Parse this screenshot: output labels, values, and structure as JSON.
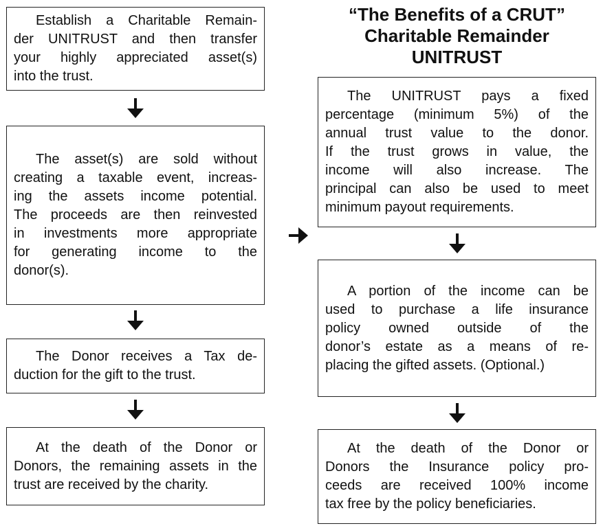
{
  "title": [
    "“The Benefits of a CRUT”",
    "Charitable Remainder",
    "UNITRUST"
  ],
  "left": [
    {
      "lines": [
        "Establish a Charitable Remain-",
        "der UNITRUST and then transfer",
        "your highly appreciated asset(s)",
        "into the trust."
      ]
    },
    {
      "lines": [
        "The asset(s) are sold without",
        "creating a taxable event, increas-",
        "ing the assets income potential.",
        "The proceeds are then reinvested",
        "in investments more appropriate",
        "for generating income to the",
        "donor(s)."
      ]
    },
    {
      "lines": [
        "The Donor receives a Tax de-",
        "duction for the gift to the trust."
      ]
    },
    {
      "lines": [
        "At the death of the Donor or",
        "Donors, the remaining assets in the",
        "trust are received by the charity."
      ]
    }
  ],
  "right": [
    {
      "lines": [
        "The UNITRUST pays a fixed",
        "percentage (minimum 5%) of the",
        "annual trust value to the donor.",
        "If the trust grows in value, the",
        "income will also increase. The",
        "principal can also be used to meet",
        "minimum payout requirements."
      ]
    },
    {
      "lines": [
        "A portion of the income can be",
        "used to purchase a life insurance",
        "policy owned outside of the",
        "donor’s estate as a means of re-",
        "placing the gifted assets. (Optional.)"
      ]
    },
    {
      "lines": [
        "At the death of the Donor or",
        "Donors the Insurance policy pro-",
        "ceeds are received 100% income",
        "tax free by the policy beneficiaries."
      ]
    }
  ]
}
